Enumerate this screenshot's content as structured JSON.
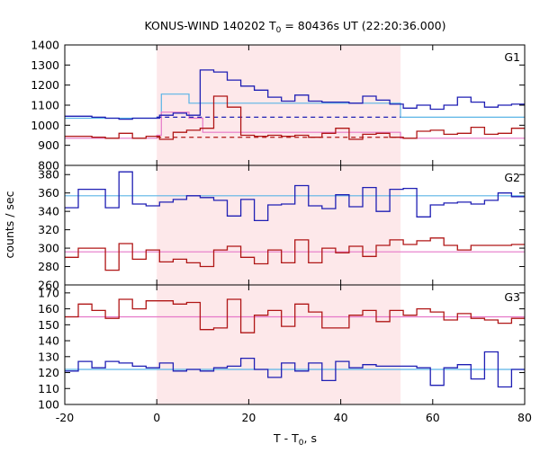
{
  "chart_data": {
    "type": "line",
    "title": "KONUS-WIND 140202 T",
    "title_sub": "0",
    "title_rest": " = 80436s UT (22:20:36.000)",
    "xlabel": "T - T",
    "xlabel_sub": "0",
    "xlabel_rest": ", s",
    "ylabel": "counts / sec",
    "xlim": [
      -20,
      80
    ],
    "xticks": [
      "-20",
      "0",
      "20",
      "40",
      "60",
      "80"
    ],
    "highlight_interval": [
      0,
      53
    ],
    "highlight_color": "#fde8ea",
    "bin_width": 2.944,
    "x_start": -20,
    "panels": [
      {
        "label": "G1",
        "ylim": [
          800,
          1400
        ],
        "yticks": [
          "800",
          "900",
          "1000",
          "1100",
          "1200",
          "1300",
          "1400"
        ],
        "series": [
          {
            "color": "#1f1fb4",
            "values": [
              1045,
              1045,
              1040,
              1035,
              1030,
              1035,
              1035,
              1050,
              1060,
              1050,
              1275,
              1265,
              1225,
              1195,
              1175,
              1140,
              1120,
              1150,
              1120,
              1115,
              1115,
              1110,
              1145,
              1125,
              1105,
              1085,
              1100,
              1080,
              1100,
              1140,
              1115,
              1090,
              1100,
              1105,
              1050,
              1080,
              1055,
              1040,
              1030,
              1060,
              1040,
              1035,
              1035,
              1040
            ]
          },
          {
            "color": "#b01616",
            "values": [
              945,
              945,
              940,
              935,
              960,
              935,
              945,
              930,
              965,
              975,
              985,
              1145,
              1090,
              950,
              945,
              950,
              945,
              950,
              940,
              960,
              985,
              930,
              955,
              960,
              940,
              935,
              970,
              975,
              955,
              960,
              990,
              955,
              960,
              985,
              935,
              940,
              950,
              925,
              945,
              905,
              935,
              950,
              940,
              935
            ]
          }
        ],
        "background_levels": [
          {
            "color": "#5ab4e6",
            "x": [
              -20,
              0,
              0,
              1,
              1,
              7,
              7,
              53,
              53,
              80
            ],
            "y": [
              1035,
              1035,
              1040,
              1040,
              1155,
              1155,
              1110,
              1110,
              1040,
              1040
            ]
          },
          {
            "color": "#e678c8",
            "x": [
              -20,
              0,
              0,
              1,
              1,
              7,
              7,
              10,
              10,
              53,
              53,
              80
            ],
            "y": [
              935,
              935,
              950,
              950,
              1065,
              1065,
              1035,
              1035,
              965,
              965,
              935,
              935
            ]
          }
        ],
        "dashed_levels": [
          {
            "color": "#1f1fb4",
            "value": 1040,
            "from": 0,
            "to": 53
          },
          {
            "color": "#b01616",
            "value": 940,
            "from": 0,
            "to": 53
          }
        ]
      },
      {
        "label": "G2",
        "ylim": [
          260,
          390
        ],
        "yticks": [
          "260",
          "280",
          "300",
          "320",
          "340",
          "360",
          "380"
        ],
        "series": [
          {
            "color": "#1f1fb4",
            "values": [
              344,
              364,
              364,
              344,
              383,
              348,
              346,
              350,
              353,
              357,
              355,
              352,
              335,
              353,
              330,
              347,
              348,
              368,
              346,
              343,
              358,
              345,
              366,
              340,
              364,
              365,
              334,
              347,
              349,
              350,
              348,
              352,
              360,
              356,
              346,
              341,
              360,
              349,
              356,
              366,
              356,
              346,
              368,
              362,
              373
            ]
          },
          {
            "color": "#b01616",
            "values": [
              290,
              300,
              300,
              276,
              305,
              288,
              298,
              285,
              288,
              284,
              280,
              298,
              302,
              290,
              283,
              298,
              284,
              309,
              284,
              300,
              295,
              302,
              291,
              303,
              309,
              304,
              308,
              311,
              303,
              298,
              303,
              303,
              303,
              304,
              315,
              289,
              301,
              308,
              308,
              299,
              282,
              296,
              289,
              276,
              310
            ]
          }
        ],
        "background_levels": [
          {
            "color": "#5ab4e6",
            "x": [
              -20,
              80
            ],
            "y": [
              357,
              357
            ]
          },
          {
            "color": "#e678c8",
            "x": [
              -20,
              80
            ],
            "y": [
              296,
              296
            ]
          }
        ]
      },
      {
        "label": "G3",
        "ylim": [
          100,
          175
        ],
        "yticks": [
          "100",
          "110",
          "120",
          "130",
          "140",
          "150",
          "160",
          "170"
        ],
        "series": [
          {
            "color": "#b01616",
            "values": [
              155,
              163,
              159,
              154,
              166,
              160,
              165,
              165,
              163,
              164,
              147,
              148,
              166,
              145,
              156,
              159,
              149,
              163,
              158,
              148,
              148,
              156,
              159,
              152,
              159,
              156,
              160,
              158,
              153,
              157,
              154,
              153,
              151,
              154,
              165,
              148,
              165,
              157,
              145,
              149,
              165,
              160,
              154,
              155,
              140
            ]
          },
          {
            "color": "#1f1fb4",
            "values": [
              121,
              127,
              123,
              127,
              126,
              124,
              123,
              126,
              121,
              122,
              121,
              123,
              124,
              129,
              122,
              117,
              126,
              121,
              126,
              115,
              127,
              123,
              125,
              124,
              124,
              124,
              123,
              112,
              123,
              125,
              116,
              133,
              111,
              122,
              130,
              120,
              123,
              117,
              122,
              112,
              121,
              118,
              120,
              113
            ]
          }
        ],
        "background_levels": [
          {
            "color": "#5ab4e6",
            "x": [
              -20,
              80
            ],
            "y": [
              122,
              122
            ]
          },
          {
            "color": "#e678c8",
            "x": [
              -20,
              80
            ],
            "y": [
              155,
              155
            ]
          }
        ]
      }
    ]
  }
}
